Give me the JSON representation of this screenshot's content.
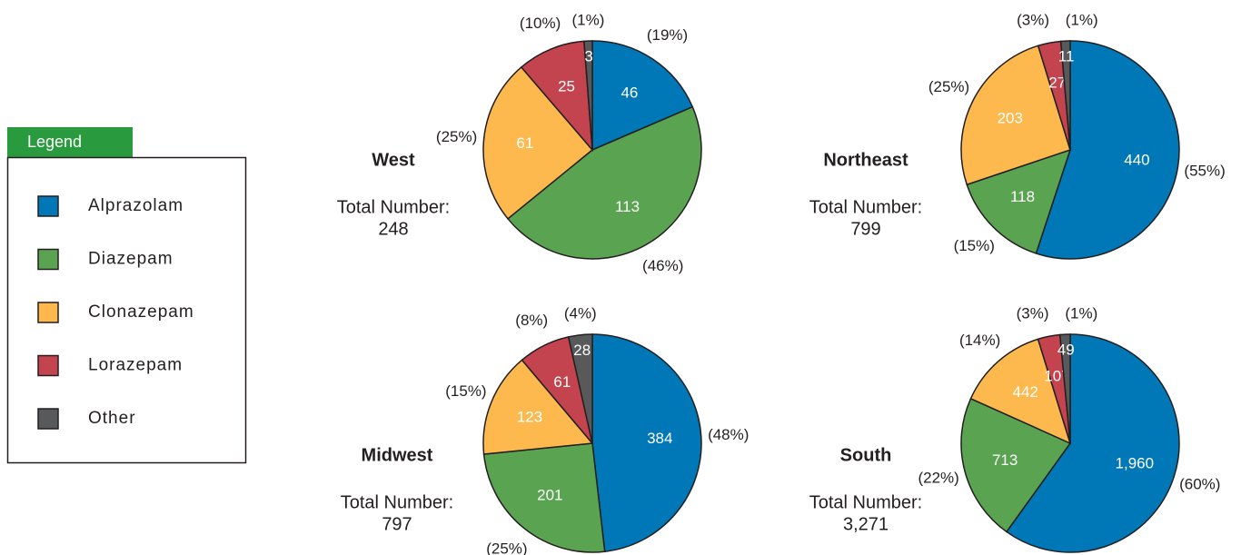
{
  "legend": {
    "title": "Legend"
  },
  "chart_data": [
    {
      "type": "pie",
      "title": "West",
      "total_caption": "Total Number:",
      "total": 248,
      "categories": [
        "Alprazolam",
        "Diazepam",
        "Clonazepam",
        "Lorazepam",
        "Other"
      ],
      "colors": [
        "#0077b6",
        "#5aa351",
        "#fdb94e",
        "#c3434f",
        "#58595b"
      ],
      "values": [
        46,
        113,
        61,
        25,
        3
      ],
      "percent_labels": [
        "(19%)",
        "(46%)",
        "(25%)",
        "(10%)",
        "(1%)"
      ]
    },
    {
      "type": "pie",
      "title": "Northeast",
      "total_caption": "Total Number:",
      "total": 799,
      "categories": [
        "Alprazolam",
        "Diazepam",
        "Clonazepam",
        "Lorazepam",
        "Other"
      ],
      "colors": [
        "#0077b6",
        "#5aa351",
        "#fdb94e",
        "#c3434f",
        "#58595b"
      ],
      "values": [
        440,
        118,
        203,
        27,
        11
      ],
      "percent_labels": [
        "(55%)",
        "(15%)",
        "(25%)",
        "(3%)",
        "(1%)"
      ]
    },
    {
      "type": "pie",
      "title": "Midwest",
      "total_caption": "Total Number:",
      "total": 797,
      "categories": [
        "Alprazolam",
        "Diazepam",
        "Clonazepam",
        "Lorazepam",
        "Other"
      ],
      "colors": [
        "#0077b6",
        "#5aa351",
        "#fdb94e",
        "#c3434f",
        "#58595b"
      ],
      "values": [
        384,
        201,
        123,
        61,
        28
      ],
      "percent_labels": [
        "(48%)",
        "(25%)",
        "(15%)",
        "(8%)",
        "(4%)"
      ]
    },
    {
      "type": "pie",
      "title": "South",
      "total_caption": "Total Number:",
      "total": {
        "value": 3271,
        "label": "3,271"
      },
      "categories": [
        "Alprazolam",
        "Diazepam",
        "Clonazepam",
        "Lorazepam",
        "Other"
      ],
      "colors": [
        "#0077b6",
        "#5aa351",
        "#fdb94e",
        "#c3434f",
        "#58595b"
      ],
      "values": [
        1960,
        713,
        442,
        107,
        49
      ],
      "value_labels": [
        "1,960",
        "713",
        "442",
        "107",
        "49"
      ],
      "percent_labels": [
        "(60%)",
        "(22%)",
        "(14%)",
        "(3%)",
        "(1%)"
      ]
    }
  ]
}
